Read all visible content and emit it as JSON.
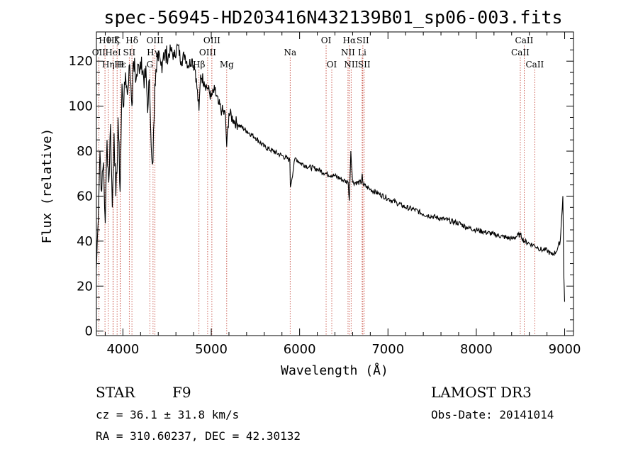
{
  "chart_data": {
    "type": "line",
    "title": "spec-56945-HD203416N432139B01_sp06-003.fits",
    "xlabel": "Wavelength (Å)",
    "ylabel": "Flux (relative)",
    "xlim": [
      3700,
      9100
    ],
    "ylim": [
      -2,
      133
    ],
    "x_ticks": [
      4000,
      5000,
      6000,
      7000,
      8000,
      9000
    ],
    "y_ticks": [
      0,
      20,
      40,
      60,
      80,
      100,
      120
    ],
    "grid": false,
    "series": [
      {
        "name": "flux",
        "x": [
          3700,
          3715,
          3740,
          3760,
          3780,
          3800,
          3820,
          3840,
          3860,
          3880,
          3900,
          3920,
          3933,
          3945,
          3968,
          3990,
          4010,
          4030,
          4050,
          4070,
          4090,
          4102,
          4120,
          4150,
          4180,
          4210,
          4240,
          4260,
          4280,
          4300,
          4320,
          4340,
          4360,
          4380,
          4400,
          4430,
          4460,
          4500,
          4540,
          4580,
          4620,
          4660,
          4700,
          4740,
          4780,
          4820,
          4861,
          4880,
          4920,
          4960,
          5000,
          5040,
          5080,
          5120,
          5160,
          5175,
          5200,
          5250,
          5300,
          5400,
          5500,
          5600,
          5700,
          5800,
          5890,
          5895,
          5950,
          6000,
          6100,
          6200,
          6300,
          6400,
          6500,
          6550,
          6563,
          6580,
          6600,
          6700,
          6708,
          6720,
          6800,
          6900,
          7000,
          7100,
          7200,
          7300,
          7400,
          7500,
          7600,
          7700,
          7800,
          7900,
          8000,
          8100,
          8200,
          8300,
          8400,
          8498,
          8542,
          8600,
          8662,
          8700,
          8750,
          8800,
          8850,
          8900,
          8950,
          8980,
          8990,
          9000
        ],
        "values": [
          28,
          45,
          80,
          62,
          75,
          48,
          85,
          66,
          92,
          55,
          88,
          60,
          70,
          95,
          62,
          110,
          100,
          115,
          105,
          118,
          110,
          100,
          120,
          112,
          118,
          122,
          108,
          118,
          97,
          112,
          82,
          75,
          110,
          115,
          120,
          118,
          124,
          121,
          125,
          122,
          127,
          120,
          123,
          118,
          121,
          116,
          98,
          114,
          111,
          108,
          104,
          107,
          101,
          98,
          96,
          82,
          97,
          94,
          92,
          89,
          86,
          82,
          80,
          78,
          76,
          64,
          77,
          75,
          73,
          72,
          70,
          69,
          67,
          66,
          58,
          80,
          66,
          66,
          70,
          65,
          63,
          61,
          59,
          57,
          55,
          54,
          52,
          51,
          50,
          49,
          48,
          46,
          45,
          44,
          43,
          42,
          41,
          43,
          40,
          39,
          38,
          37,
          36,
          36,
          34,
          35,
          40,
          60,
          25,
          13
        ]
      }
    ],
    "spectral_lines": [
      {
        "label": "Hθ",
        "x": 3797,
        "row": 0
      },
      {
        "label": "OII",
        "x": 3727,
        "row": 1
      },
      {
        "label": "Hη",
        "x": 3835,
        "row": 2
      },
      {
        "label": "Hζ",
        "x": 3889,
        "row": 0
      },
      {
        "label": "HeI",
        "x": 3889,
        "row": 1
      },
      {
        "label": "Hε",
        "x": 3970,
        "row": 2
      },
      {
        "label": "K",
        "x": 3934,
        "row": 0
      },
      {
        "label": "SII",
        "x": 4072,
        "row": 1
      },
      {
        "label": "H",
        "x": 3969,
        "row": 2
      },
      {
        "label": "Hδ",
        "x": 4102,
        "row": 0
      },
      {
        "label": "OIII",
        "x": 4363,
        "row": 0
      },
      {
        "label": "Hγ",
        "x": 4341,
        "row": 1
      },
      {
        "label": "G",
        "x": 4305,
        "row": 2
      },
      {
        "label": "Hβ",
        "x": 4861,
        "row": 2
      },
      {
        "label": "OIII",
        "x": 5007,
        "row": 0
      },
      {
        "label": "OIII",
        "x": 4959,
        "row": 1
      },
      {
        "label": "Mg",
        "x": 5175,
        "row": 2
      },
      {
        "label": "Na",
        "x": 5893,
        "row": 1
      },
      {
        "label": "OI",
        "x": 6300,
        "row": 0
      },
      {
        "label": "OI",
        "x": 6364,
        "row": 2
      },
      {
        "label": "Hα",
        "x": 6563,
        "row": 0
      },
      {
        "label": "NII",
        "x": 6548,
        "row": 1
      },
      {
        "label": "NII",
        "x": 6583,
        "row": 2
      },
      {
        "label": "SII",
        "x": 6716,
        "row": 0
      },
      {
        "label": "Li",
        "x": 6708,
        "row": 1
      },
      {
        "label": "SII",
        "x": 6731,
        "row": 2
      },
      {
        "label": "CaII",
        "x": 8542,
        "row": 0
      },
      {
        "label": "CaII",
        "x": 8498,
        "row": 1
      },
      {
        "label": "CaII",
        "x": 8662,
        "row": 2
      }
    ]
  },
  "info": {
    "object_class": "STAR",
    "subclass": "F9",
    "survey": "LAMOST DR3",
    "redshift": "cz = 36.1 ± 31.8 km/s",
    "obs_date": "Obs-Date: 20141014",
    "coords": "RA = 310.60237, DEC =  42.30132"
  }
}
